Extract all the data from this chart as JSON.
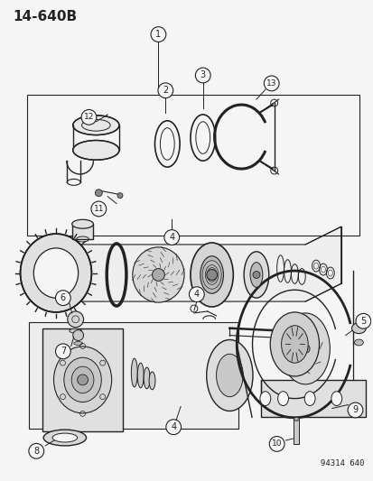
{
  "title": "14-640B",
  "part_number": "94314 640",
  "bg_color": "#f5f5f5",
  "line_color": "#222222",
  "figsize": [
    4.14,
    5.33
  ],
  "dpi": 100
}
